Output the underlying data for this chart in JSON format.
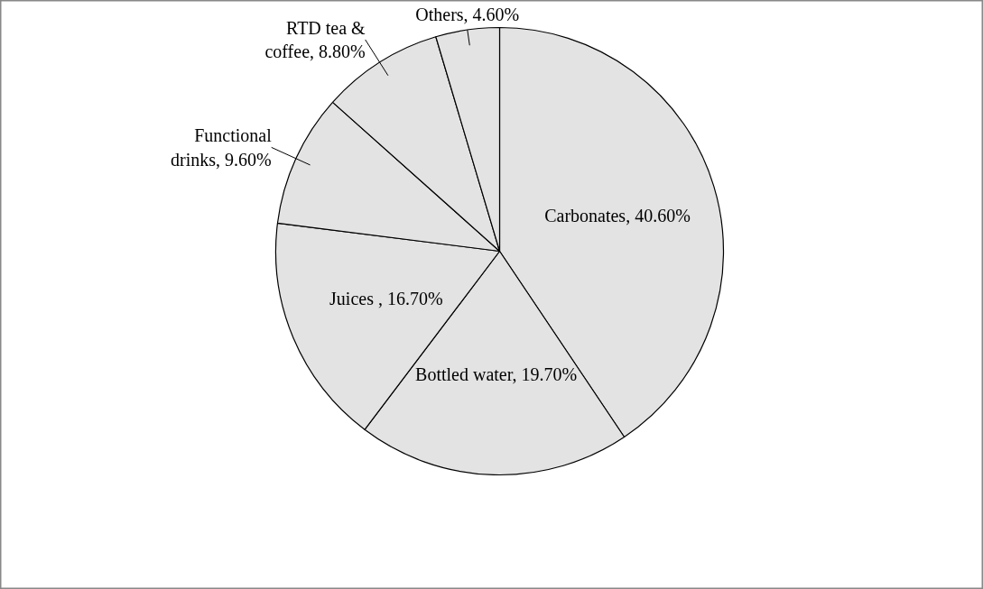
{
  "chart_data": {
    "type": "pie",
    "categories": [
      "Carbonates",
      "Bottled water",
      "Juices ",
      "Functional drinks",
      "RTD tea & coffee",
      "Others"
    ],
    "values": [
      40.6,
      19.7,
      16.7,
      9.6,
      8.8,
      4.6
    ],
    "colors": [
      "#e3e3e3",
      "#e3e3e3",
      "#e3e3e3",
      "#e3e3e3",
      "#e3e3e3",
      "#e3e3e3"
    ],
    "value_labels": [
      "40.60%",
      "19.70%",
      "16.70%",
      "9.60%",
      "8.80%",
      "4.60%"
    ]
  }
}
